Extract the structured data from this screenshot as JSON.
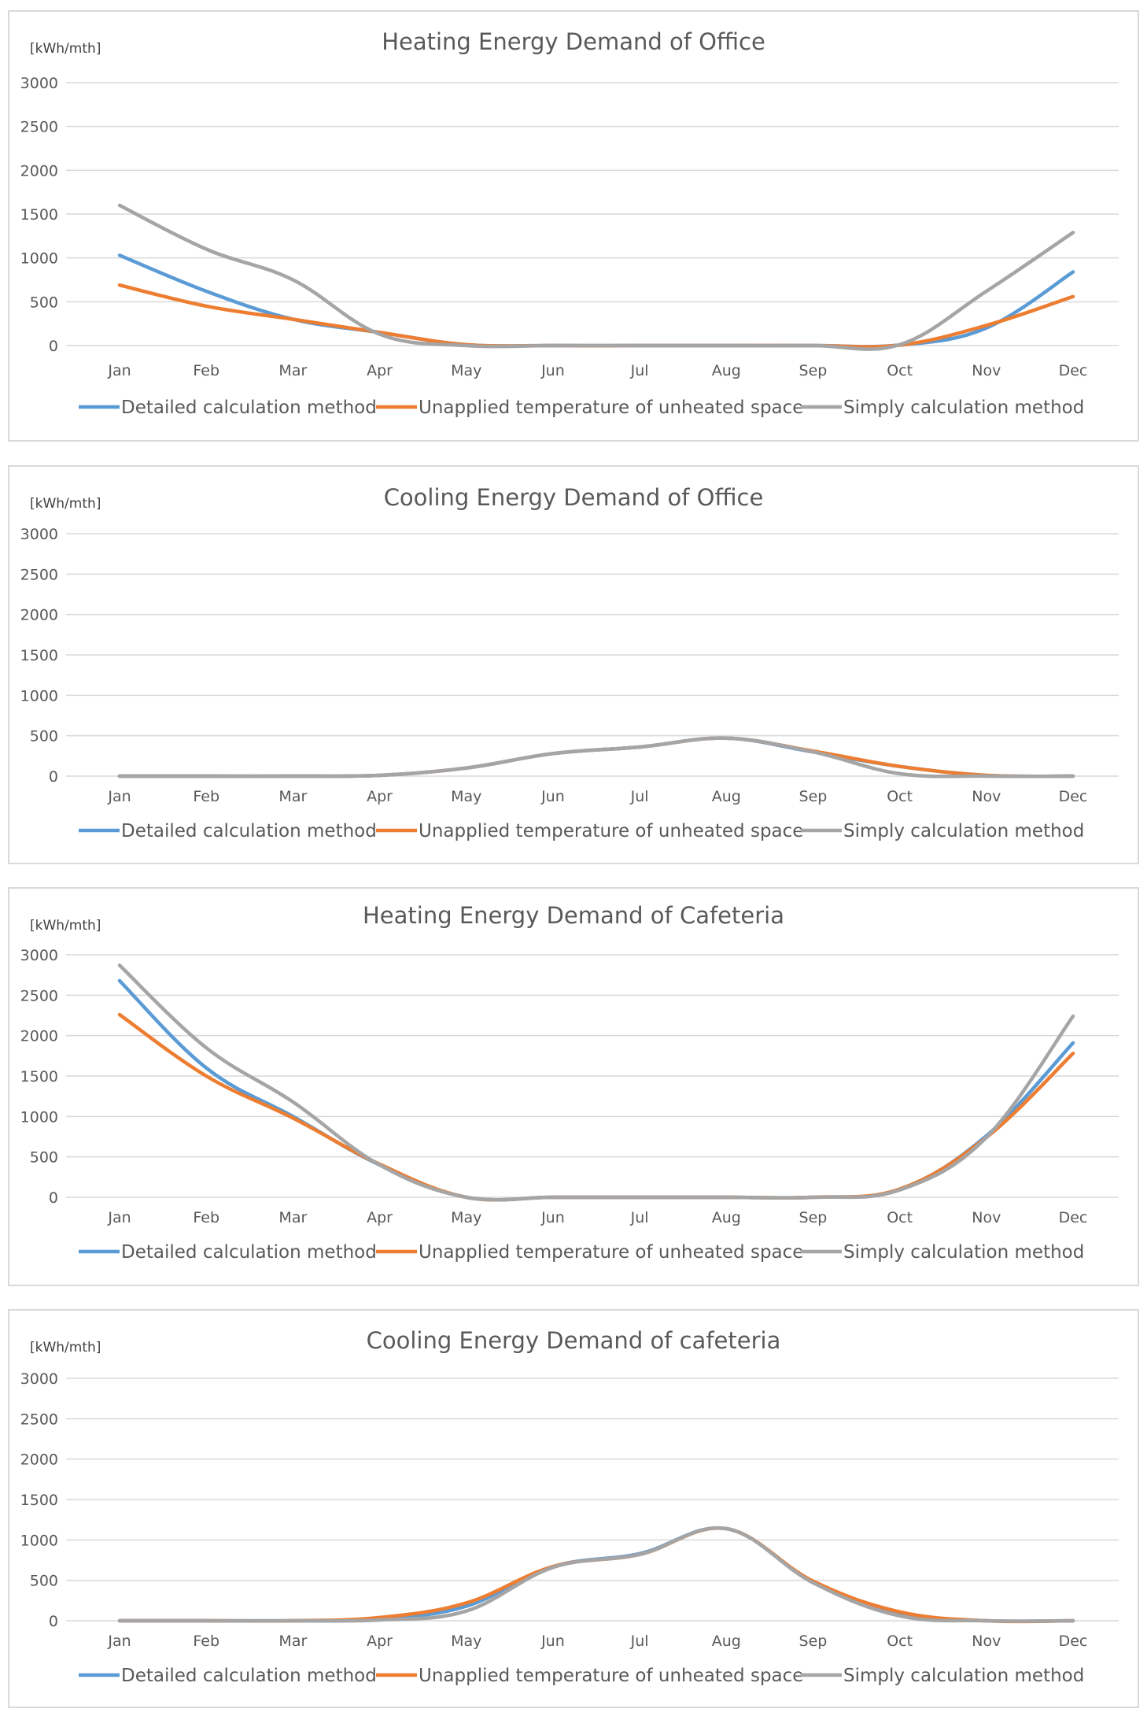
{
  "colors": {
    "detailed": "#5b9bd5",
    "unapplied": "#ed7d31",
    "simply": "#a5a5a5"
  },
  "chart_data": [
    {
      "type": "line",
      "title": "Heating Energy Demand  of Office",
      "ylabel": "[kWh/mth]",
      "xlabel": "",
      "categories": [
        "Jan",
        "Feb",
        "Mar",
        "Apr",
        "May",
        "Jun",
        "Jul",
        "Aug",
        "Sep",
        "Oct",
        "Nov",
        "Dec"
      ],
      "yticks": [
        0,
        500,
        1000,
        1500,
        2000,
        2500,
        3000
      ],
      "ylim": [
        0,
        3000
      ],
      "grid": true,
      "legend": "bottom",
      "series": [
        {
          "name": "Detailed calculation method",
          "color_key": "detailed",
          "values": [
            1030,
            620,
            300,
            150,
            10,
            0,
            0,
            0,
            0,
            5,
            200,
            840
          ]
        },
        {
          "name": "Unapplied temperature of unheated space",
          "color_key": "unapplied",
          "values": [
            690,
            450,
            300,
            150,
            10,
            0,
            0,
            0,
            0,
            5,
            230,
            560
          ]
        },
        {
          "name": "Simply calculation method",
          "color_key": "simply",
          "values": [
            1600,
            1100,
            750,
            130,
            0,
            0,
            0,
            0,
            0,
            10,
            620,
            1290
          ]
        }
      ]
    },
    {
      "type": "line",
      "title": "Cooling Energy Demand  of Office",
      "ylabel": "[kWh/mth]",
      "xlabel": "",
      "categories": [
        "Jan",
        "Feb",
        "Mar",
        "Apr",
        "May",
        "Jun",
        "Jul",
        "Aug",
        "Sep",
        "Oct",
        "Nov",
        "Dec"
      ],
      "yticks": [
        0,
        500,
        1000,
        1500,
        2000,
        2500,
        3000
      ],
      "ylim": [
        0,
        3000
      ],
      "grid": true,
      "legend": "bottom",
      "series": [
        {
          "name": "Detailed calculation method",
          "color_key": "detailed",
          "values": [
            0,
            0,
            0,
            10,
            100,
            280,
            360,
            470,
            300,
            120,
            10,
            0
          ]
        },
        {
          "name": "Unapplied temperature of unheated space",
          "color_key": "unapplied",
          "values": [
            0,
            0,
            0,
            10,
            100,
            280,
            360,
            470,
            310,
            120,
            10,
            0
          ]
        },
        {
          "name": "Simply calculation method",
          "color_key": "simply",
          "values": [
            0,
            0,
            0,
            10,
            100,
            280,
            360,
            470,
            300,
            30,
            0,
            0
          ]
        }
      ]
    },
    {
      "type": "line",
      "title": "Heating Energy Demand  of Cafeteria",
      "ylabel": "[kWh/mth]",
      "xlabel": "",
      "categories": [
        "Jan",
        "Feb",
        "Mar",
        "Apr",
        "May",
        "Jun",
        "Jul",
        "Aug",
        "Sep",
        "Oct",
        "Nov",
        "Dec"
      ],
      "yticks": [
        0,
        500,
        1000,
        1500,
        2000,
        2500,
        3000
      ],
      "ylim": [
        0,
        3000
      ],
      "grid": true,
      "legend": "bottom",
      "series": [
        {
          "name": "Detailed calculation method",
          "color_key": "detailed",
          "values": [
            2680,
            1600,
            1000,
            400,
            0,
            0,
            0,
            0,
            0,
            100,
            760,
            1910
          ]
        },
        {
          "name": "Unapplied temperature of unheated space",
          "color_key": "unapplied",
          "values": [
            2260,
            1500,
            980,
            410,
            0,
            0,
            0,
            0,
            0,
            100,
            740,
            1780
          ]
        },
        {
          "name": "Simply calculation method",
          "color_key": "simply",
          "values": [
            2870,
            1850,
            1180,
            400,
            0,
            0,
            0,
            0,
            0,
            90,
            740,
            2240
          ]
        }
      ]
    },
    {
      "type": "line",
      "title": "Cooling Energy Demand  of cafeteria",
      "ylabel": "[kWh/mth]",
      "xlabel": "",
      "categories": [
        "Jan",
        "Feb",
        "Mar",
        "Apr",
        "May",
        "Jun",
        "Jul",
        "Aug",
        "Sep",
        "Oct",
        "Nov",
        "Dec"
      ],
      "yticks": [
        0,
        500,
        1000,
        1500,
        2000,
        2500,
        3000
      ],
      "ylim": [
        0,
        3000
      ],
      "grid": true,
      "legend": "bottom",
      "series": [
        {
          "name": "Detailed calculation method",
          "color_key": "detailed",
          "values": [
            0,
            0,
            0,
            20,
            180,
            670,
            830,
            1140,
            480,
            100,
            0,
            0
          ]
        },
        {
          "name": "Unapplied temperature of unheated space",
          "color_key": "unapplied",
          "values": [
            0,
            0,
            0,
            40,
            220,
            670,
            820,
            1140,
            490,
            110,
            0,
            0
          ]
        },
        {
          "name": "Simply calculation method",
          "color_key": "simply",
          "values": [
            0,
            0,
            0,
            10,
            120,
            660,
            820,
            1140,
            470,
            60,
            0,
            0
          ]
        }
      ]
    }
  ]
}
